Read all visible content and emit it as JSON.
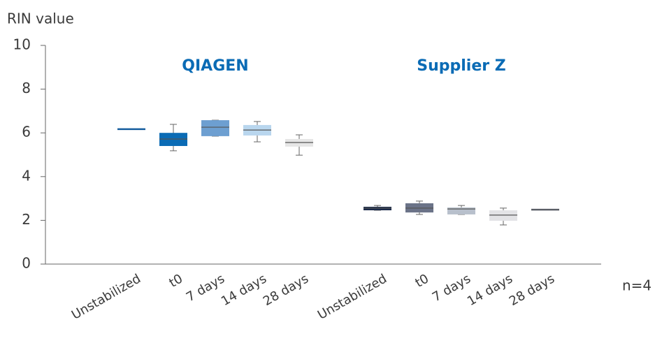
{
  "chart_data": {
    "type": "box",
    "ylabel": "RIN value",
    "ylim": [
      0,
      10
    ],
    "yticks": [
      0,
      2,
      4,
      6,
      8,
      10
    ],
    "annotation": "n=4",
    "groups": [
      {
        "name": "QIAGEN",
        "categories": [
          "Unstabilized",
          "t0",
          "7 days",
          "14 days",
          "28 days"
        ],
        "boxes": [
          {
            "min": 6.17,
            "q1": 6.17,
            "median": 6.17,
            "q3": 6.17,
            "max": 6.17,
            "color": "#155d9e"
          },
          {
            "min": 5.18,
            "q1": 5.4,
            "median": 5.72,
            "q3": 6.0,
            "max": 6.39,
            "color": "#0a6bb5"
          },
          {
            "min": 5.85,
            "q1": 5.85,
            "median": 6.26,
            "q3": 6.58,
            "max": 6.58,
            "color": "#6d9fd1"
          },
          {
            "min": 5.59,
            "q1": 5.88,
            "median": 6.13,
            "q3": 6.36,
            "max": 6.52,
            "color": "#b9d6ee"
          },
          {
            "min": 4.98,
            "q1": 5.37,
            "median": 5.56,
            "q3": 5.72,
            "max": 5.91,
            "color": "#e6e6e6"
          }
        ]
      },
      {
        "name": "Supplier Z",
        "categories": [
          "Unstabilized",
          "t0",
          "7 days",
          "14 days",
          "28 days"
        ],
        "boxes": [
          {
            "min": 2.46,
            "q1": 2.46,
            "median": 2.56,
            "q3": 2.62,
            "max": 2.68,
            "color": "#1b2a4a"
          },
          {
            "min": 2.27,
            "q1": 2.36,
            "median": 2.56,
            "q3": 2.78,
            "max": 2.88,
            "color": "#6b7388"
          },
          {
            "min": 2.27,
            "q1": 2.27,
            "median": 2.52,
            "q3": 2.59,
            "max": 2.68,
            "color": "#b8c0cc"
          },
          {
            "min": 1.79,
            "q1": 1.98,
            "median": 2.24,
            "q3": 2.46,
            "max": 2.56,
            "color": "#e3e3e6"
          },
          {
            "min": 2.49,
            "q1": 2.49,
            "median": 2.49,
            "q3": 2.49,
            "max": 2.49,
            "color": "#5a5e66"
          }
        ]
      }
    ]
  }
}
